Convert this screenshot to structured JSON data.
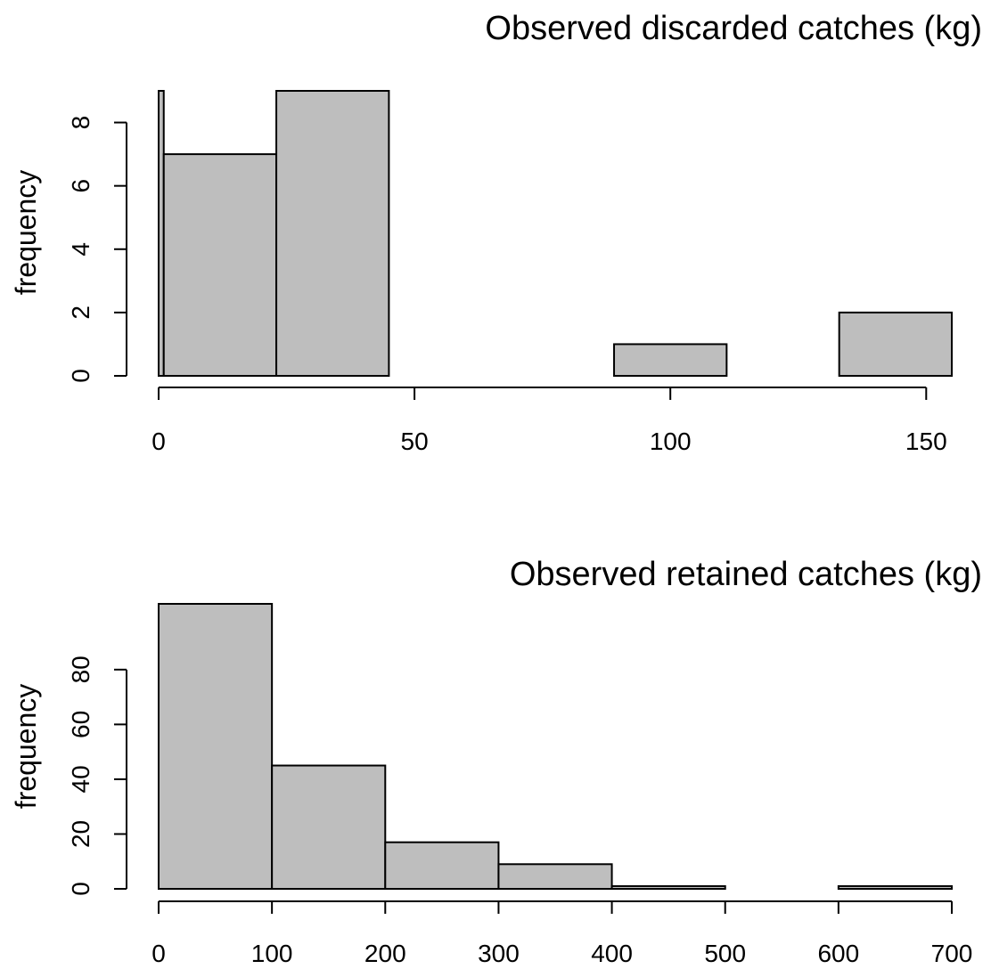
{
  "chart_data": [
    {
      "type": "bar",
      "title": "Observed discarded catches (kg)",
      "ylabel": "frequency",
      "xlabel": "",
      "xlim": [
        0,
        155
      ],
      "ylim": [
        0,
        9
      ],
      "x_ticks": [
        0,
        50,
        100,
        150
      ],
      "y_ticks": [
        0,
        2,
        4,
        6,
        8
      ],
      "bar_color": "#bebebe",
      "bins": [
        {
          "x0": 0,
          "x1": 1,
          "count": 9
        },
        {
          "x0": 1,
          "x1": 23,
          "count": 7
        },
        {
          "x0": 23,
          "x1": 45,
          "count": 9
        },
        {
          "x0": 45,
          "x1": 67,
          "count": 0
        },
        {
          "x0": 67,
          "x1": 89,
          "count": 0
        },
        {
          "x0": 89,
          "x1": 111,
          "count": 1
        },
        {
          "x0": 111,
          "x1": 133,
          "count": 0
        },
        {
          "x0": 133,
          "x1": 155,
          "count": 2
        }
      ]
    },
    {
      "type": "bar",
      "title": "Observed retained catches (kg)",
      "ylabel": "frequency",
      "xlabel": "",
      "xlim": [
        0,
        700
      ],
      "ylim": [
        0,
        104
      ],
      "x_ticks": [
        0,
        100,
        200,
        300,
        400,
        500,
        600,
        700
      ],
      "y_ticks": [
        0,
        20,
        40,
        60,
        80
      ],
      "bar_color": "#bebebe",
      "bins": [
        {
          "x0": 0,
          "x1": 100,
          "count": 104
        },
        {
          "x0": 100,
          "x1": 200,
          "count": 45
        },
        {
          "x0": 200,
          "x1": 300,
          "count": 17
        },
        {
          "x0": 300,
          "x1": 400,
          "count": 9
        },
        {
          "x0": 400,
          "x1": 500,
          "count": 1
        },
        {
          "x0": 500,
          "x1": 600,
          "count": 0
        },
        {
          "x0": 600,
          "x1": 700,
          "count": 1
        }
      ]
    }
  ]
}
